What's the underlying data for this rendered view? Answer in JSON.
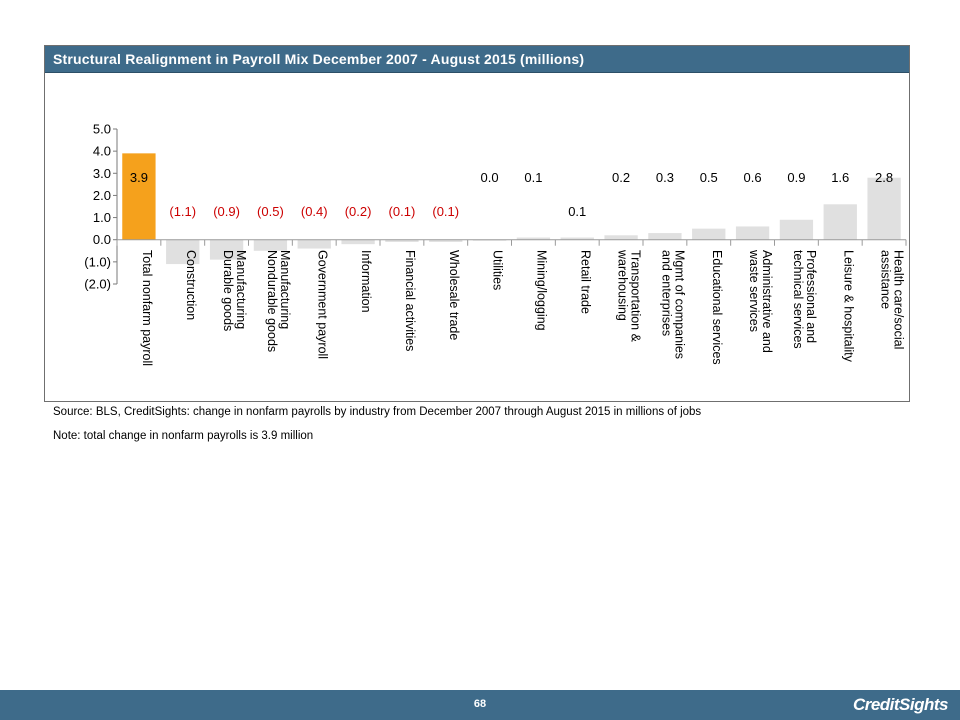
{
  "chart_data": {
    "type": "bar",
    "title": "Structural Realignment in Payroll Mix December 2007 - August 2015  (millions)",
    "categories": [
      "Total nonfarm payroll",
      "Construction",
      "Manufacturing Durable goods",
      "Manufacturing Nondurable goods",
      "Government payroll",
      "Information",
      "Financial activities",
      "Wholesale trade",
      "Utilities",
      "Mining/logging",
      "Retail trade",
      "Transportation & warehousing",
      "Mgmt of companies and enterprises",
      "Educational services",
      "Administrative and waste services",
      "Professional and technical services",
      "Leisure & hospitality",
      "Health care/social assistance"
    ],
    "category_lines": [
      [
        "Total nonfarm payroll"
      ],
      [
        "Construction"
      ],
      [
        "Manufacturing",
        "Durable goods"
      ],
      [
        "Manufacturing",
        "Nondurable goods"
      ],
      [
        "Government payroll"
      ],
      [
        "Information"
      ],
      [
        "Financial activities"
      ],
      [
        "Wholesale trade"
      ],
      [
        "Utilities"
      ],
      [
        "Mining/logging"
      ],
      [
        "Retail trade"
      ],
      [
        "Transportation &",
        "warehousing"
      ],
      [
        "Mgmt of companies",
        "and enterprises"
      ],
      [
        "Educational services"
      ],
      [
        "Administrative and",
        "waste services"
      ],
      [
        "Professional and",
        "technical services"
      ],
      [
        "Leisure & hospitality"
      ],
      [
        "Health care/social",
        "assistance"
      ]
    ],
    "values": [
      3.9,
      -1.1,
      -0.9,
      -0.5,
      -0.4,
      -0.2,
      -0.1,
      -0.1,
      0.0,
      0.1,
      0.1,
      0.2,
      0.3,
      0.5,
      0.6,
      0.9,
      1.6,
      2.8
    ],
    "value_labels": [
      "3.9",
      "(1.1)",
      "(0.9)",
      "(0.5)",
      "(0.4)",
      "(0.2)",
      "(0.1)",
      "(0.1)",
      "0.0",
      "0.1",
      "0.1",
      "0.2",
      "0.3",
      "0.5",
      "0.6",
      "0.9",
      "1.6",
      "2.8"
    ],
    "ylim": [
      -2.0,
      5.0
    ],
    "yticks": [
      5.0,
      4.0,
      3.0,
      2.0,
      1.0,
      0.0,
      -1.0,
      -2.0
    ],
    "ytick_labels": [
      "5.0",
      "4.0",
      "3.0",
      "2.0",
      "1.0",
      "0.0",
      "(1.0)",
      "(2.0)"
    ],
    "colors": {
      "highlight_bar": "#f5a11c",
      "bar": "#e0e0e0",
      "negative_label": "#cc0000",
      "label": "#000000"
    }
  },
  "source": "Source: BLS, CreditSights: change in nonfarm payrolls by industry from December 2007 through August 2015 in millions of jobs",
  "note": "Note: total change in nonfarm payrolls is 3.9 million",
  "footer": {
    "page_number": "68",
    "logo": "CreditSights"
  }
}
